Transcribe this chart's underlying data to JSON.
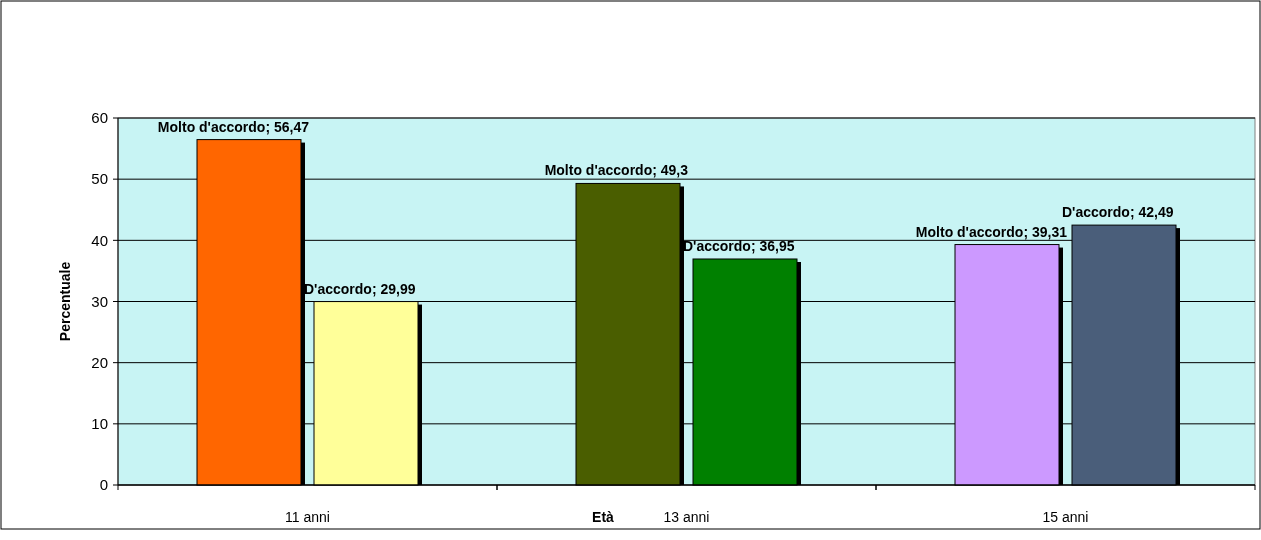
{
  "chart_data": {
    "type": "bar",
    "xlabel": "Età",
    "ylabel": "Percentuale",
    "categories": [
      "11 anni",
      "13 anni",
      "15 anni"
    ],
    "series": [
      {
        "colors": [
          "#ff6600",
          "#4a5e00",
          "#cc99ff"
        ],
        "values": [
          56.47,
          49.3,
          39.31
        ],
        "value_labels": [
          "Molto d'accordo; 56,47",
          "Molto d'accordo; 49,3",
          "Molto d'accordo; 39,31"
        ]
      },
      {
        "colors": [
          "#ffff99",
          "#008000",
          "#4a5e7a"
        ],
        "values": [
          29.99,
          36.95,
          42.49
        ],
        "value_labels": [
          "D'accordo; 29,99",
          "D'accordo; 36,95",
          "D'accordo; 42,49"
        ]
      }
    ],
    "ylim": [
      0,
      60
    ],
    "yticks": [
      0,
      10,
      20,
      30,
      40,
      50,
      60
    ],
    "grid": "y"
  }
}
